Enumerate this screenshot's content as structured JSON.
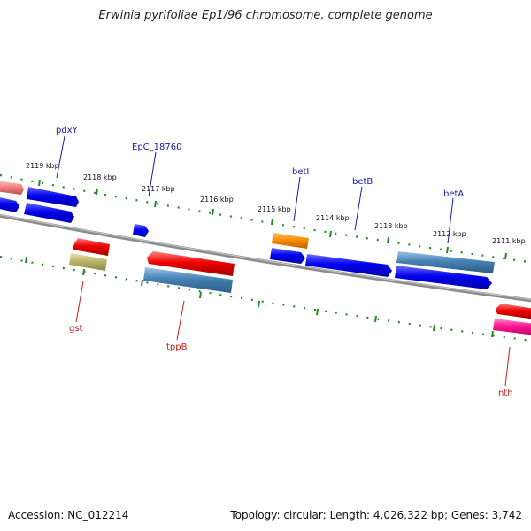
{
  "title": "Erwinia pyrifoliae Ep1/96 chromosome, complete genome",
  "footer": {
    "accession": "Accession: NC_012214",
    "topology": "Topology: circular; Length: 4,026,322 bp; Genes: 3,742"
  },
  "ticks": [
    "2119 kbp",
    "2118 kbp",
    "2117 kbp",
    "2116 kbp",
    "2115 kbp",
    "2114 kbp",
    "2113 kbp",
    "2112 kbp",
    "2111 kbp"
  ],
  "gene_labels": {
    "pdxY": "pdxY",
    "EpC_18760": "EpC_18760",
    "betI": "betI",
    "betB": "betB",
    "betA": "betA",
    "gst": "gst",
    "tppB": "tppB",
    "nth": "nth"
  },
  "colors": {
    "blue_gene": "#0000ee",
    "steel_gene": "#4682b4",
    "red_gene": "#ee0000",
    "pink_gene": "#f08080",
    "khaki_gene": "#bdb76b",
    "orange_gene": "#ff8c00",
    "magenta_gene": "#ff1493",
    "backbone": "#8c8c8c",
    "tick_green": "#228b22"
  }
}
